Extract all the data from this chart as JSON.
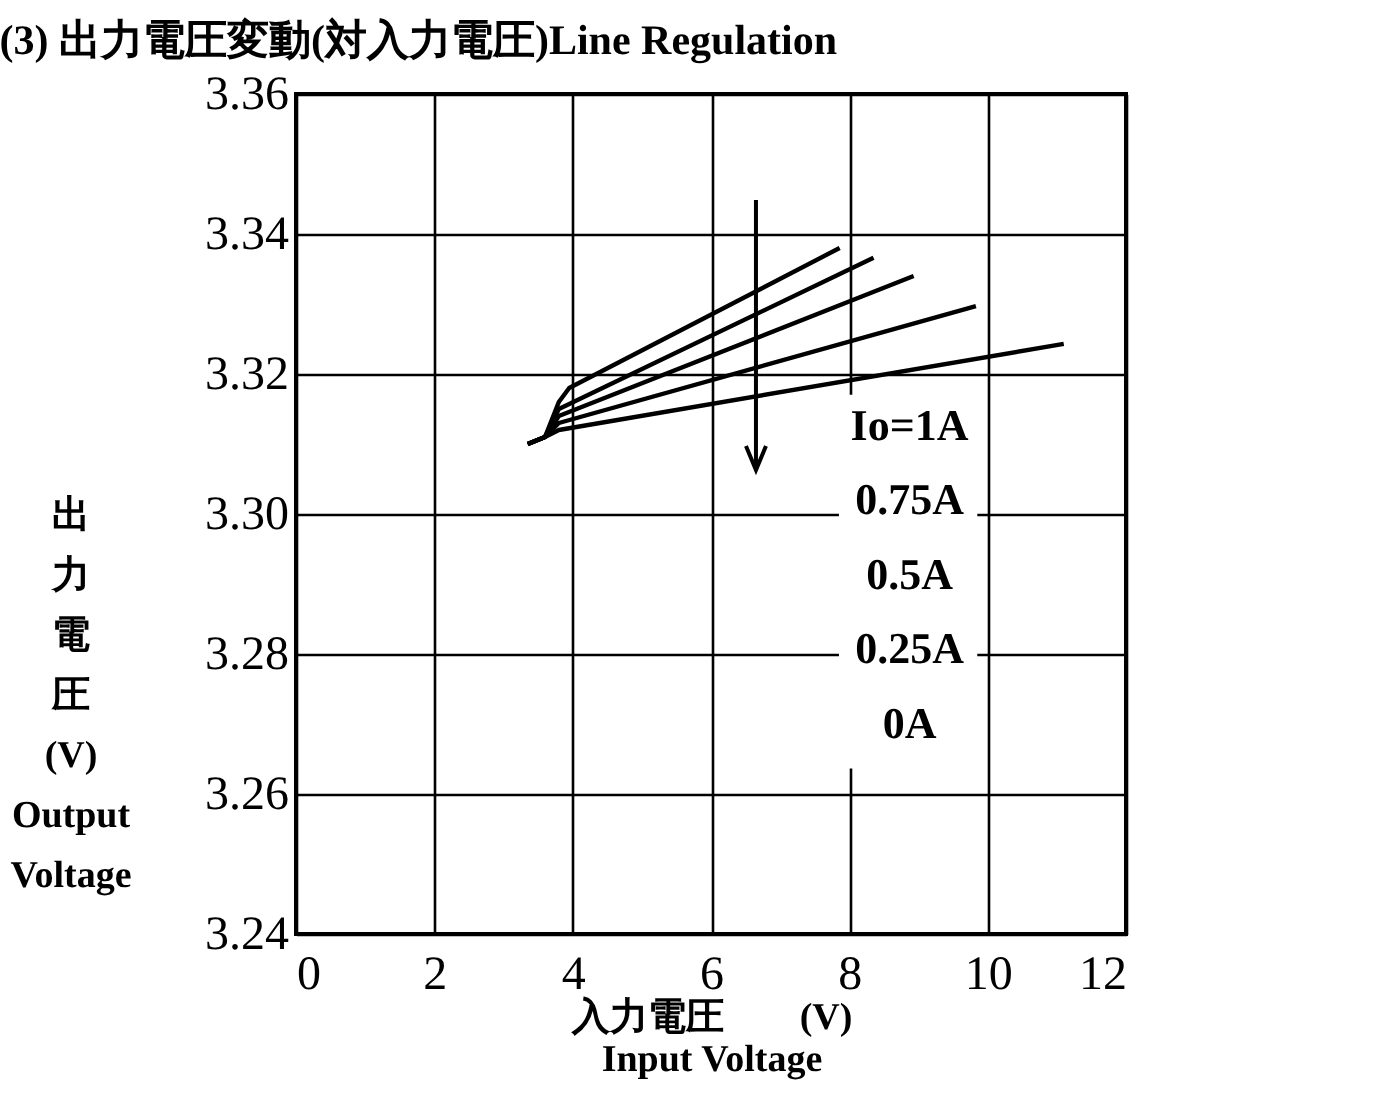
{
  "chart_data": {
    "type": "line",
    "title": "(3) 出力電圧変動(対入力電圧)Line Regulation",
    "xlabel": "入力電圧　　(V)\nInput  Voltage",
    "ylabel": "出力電圧\n(V)\nOutput\nVoltage",
    "xlim": [
      0,
      12
    ],
    "xticks": [
      0,
      2,
      4,
      6,
      8,
      10,
      12
    ],
    "ylim": [
      3.24,
      3.36
    ],
    "yticks": [
      3.24,
      3.26,
      3.28,
      {
        "value": 3.3,
        "label": "3.30"
      },
      3.32,
      3.34,
      3.36
    ],
    "grid": true,
    "color": "#000000",
    "annotations": [
      "Io=1A",
      "0.75A",
      "0.5A",
      "0.25A",
      "0A"
    ],
    "series": [
      {
        "x": [
          3.35,
          3.6,
          3.8,
          3.95,
          7.86
        ],
        "values": [
          3.31,
          3.311,
          3.316,
          3.318,
          3.338
        ]
      },
      {
        "x": [
          3.35,
          3.6,
          3.8,
          8.35
        ],
        "values": [
          3.31,
          3.311,
          3.315,
          3.3366
        ]
      },
      {
        "x": [
          3.35,
          3.6,
          3.8,
          8.93
        ],
        "values": [
          3.31,
          3.311,
          3.314,
          3.334
        ]
      },
      {
        "x": [
          3.35,
          3.6,
          3.8,
          9.83
        ],
        "values": [
          3.31,
          3.311,
          3.313,
          3.3297
        ]
      },
      {
        "x": [
          3.35,
          3.6,
          3.8,
          11.1
        ],
        "values": [
          3.31,
          3.311,
          3.312,
          3.3243
        ]
      }
    ]
  }
}
